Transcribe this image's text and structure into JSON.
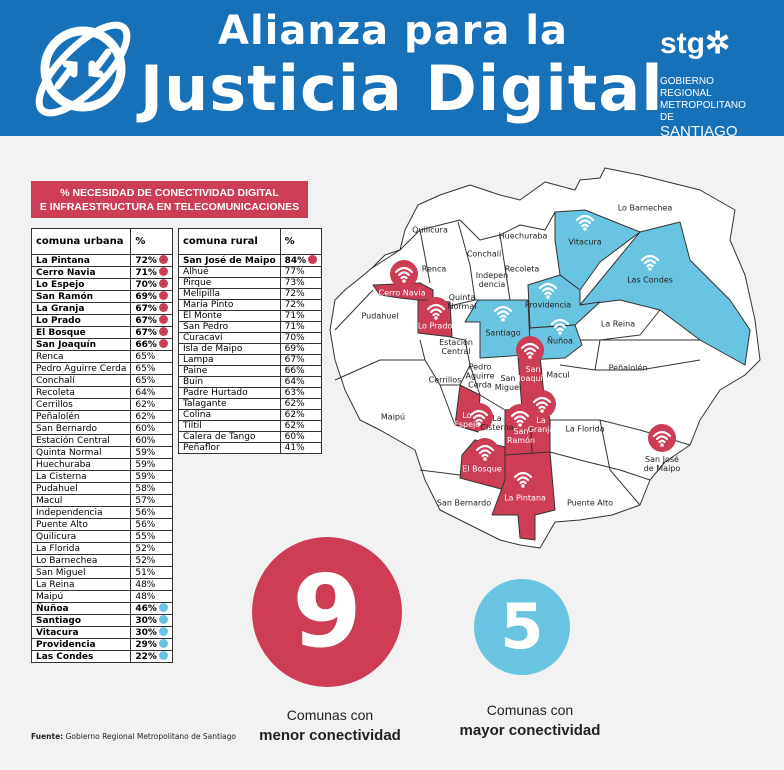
{
  "header": {
    "title_line1": "Alianza para la",
    "title_line2": "Justicia Digital",
    "logo_brand": "stg",
    "logo_line1": "GOBIERNO REGIONAL",
    "logo_line2": "METROPOLITANO DE",
    "logo_line3": "SANTIAGO",
    "color": "#1771b8"
  },
  "banner": {
    "line1": "% NECESIDAD DE CONECTIVIDAD DIGITAL",
    "line2": "E INFRAESTRUCTURA EN TELECOMUNICACIONES"
  },
  "colors": {
    "low_connectivity": "#cd3d55",
    "high_connectivity": "#69c4e1"
  },
  "urban_table": {
    "headers": [
      "comuna urbana",
      "%"
    ],
    "rows": [
      [
        "La Pintana",
        "72%",
        "red"
      ],
      [
        "Cerro Navia",
        "71%",
        "red"
      ],
      [
        "Lo Espejo",
        "70%",
        "red"
      ],
      [
        "San Ramón",
        "69%",
        "red"
      ],
      [
        "La Granja",
        "67%",
        "red"
      ],
      [
        "Lo Prado",
        "67%",
        "red"
      ],
      [
        "El Bosque",
        "67%",
        "red"
      ],
      [
        "San Joaquín",
        "66%",
        "red"
      ],
      [
        "Renca",
        "65%",
        ""
      ],
      [
        "Pedro Aguirre Cerda",
        "65%",
        ""
      ],
      [
        "Conchalí",
        "65%",
        ""
      ],
      [
        "Recoleta",
        "64%",
        ""
      ],
      [
        "Cerrillos",
        "62%",
        ""
      ],
      [
        "Peñalolén",
        "62%",
        ""
      ],
      [
        "San Bernardo",
        "60%",
        ""
      ],
      [
        "Estación Central",
        "60%",
        ""
      ],
      [
        "Quinta Normal",
        "59%",
        ""
      ],
      [
        "Huechuraba",
        "59%",
        ""
      ],
      [
        "La Cisterna",
        "59%",
        ""
      ],
      [
        "Pudahuel",
        "58%",
        ""
      ],
      [
        "Macul",
        "57%",
        ""
      ],
      [
        "Independencia",
        "56%",
        ""
      ],
      [
        "Puente Alto",
        "56%",
        ""
      ],
      [
        "Quilicura",
        "55%",
        ""
      ],
      [
        "La Florida",
        "52%",
        ""
      ],
      [
        "Lo Barnechea",
        "52%",
        ""
      ],
      [
        "San Miguel",
        "51%",
        ""
      ],
      [
        "La Reina",
        "48%",
        ""
      ],
      [
        "Maipú",
        "48%",
        ""
      ],
      [
        "Ñuñoa",
        "46%",
        "blue"
      ],
      [
        "Santiago",
        "30%",
        "blue"
      ],
      [
        "Vitacura",
        "30%",
        "blue"
      ],
      [
        "Providencia",
        "29%",
        "blue"
      ],
      [
        "Las Condes",
        "22%",
        "blue"
      ]
    ]
  },
  "rural_table": {
    "headers": [
      "comuna rural",
      "%"
    ],
    "rows": [
      [
        "San José de Maipo",
        "84%",
        "red"
      ],
      [
        "Alhué",
        "77%",
        ""
      ],
      [
        "Pirque",
        "73%",
        ""
      ],
      [
        "Melipilla",
        "72%",
        ""
      ],
      [
        "María Pinto",
        "72%",
        ""
      ],
      [
        "El Monte",
        "71%",
        ""
      ],
      [
        "San Pedro",
        "71%",
        ""
      ],
      [
        "Curacaví",
        "70%",
        ""
      ],
      [
        "Isla de Maipo",
        "69%",
        ""
      ],
      [
        "Lampa",
        "67%",
        ""
      ],
      [
        "Paine",
        "66%",
        ""
      ],
      [
        "Buin",
        "64%",
        ""
      ],
      [
        "Padre Hurtado",
        "63%",
        ""
      ],
      [
        "Talagante",
        "62%",
        ""
      ],
      [
        "Colina",
        "62%",
        ""
      ],
      [
        "Tiltil",
        "62%",
        ""
      ],
      [
        "Calera de Tango",
        "60%",
        ""
      ],
      [
        "Peñaflor",
        "41%",
        ""
      ]
    ]
  },
  "map": {
    "labels": {
      "lo_barnechea": "Lo Barnechea",
      "quilicura": "Quilicura",
      "huechuraba": "Huechuraba",
      "vitacura": "Vitacura",
      "conchali": "Conchalí",
      "renca": "Renca",
      "independencia": "Indepen\ndencia",
      "recoleta": "Recoleta",
      "las_condes": "Las Condes",
      "cerro_navia": "Cerro Navia",
      "quinta_normal": "Quinta\nNormal",
      "providencia": "Providencia",
      "pudahuel": "Pudahuel",
      "lo_prado": "Lo Prado",
      "santiago": "Santiago",
      "la_reina": "La Reina",
      "nunoa": "Ñuñoa",
      "estacion_central": "Estación\nCentral",
      "penalolen": "Peñalolén",
      "san_joaquin": "San\nJoaquín",
      "macul": "Macul",
      "cerrillos": "Cerrillos",
      "pac": "Pedro\nAguirre\nCerda",
      "san_miguel": "San\nMiguel",
      "maipu": "Maipú",
      "lo_espejo": "Lo\nEspejo",
      "la_cisterna": "La\nCisterna",
      "la_granja": "La\nGranja",
      "san_ramon": "San\nRamón",
      "la_florida": "La Florida",
      "san_jose": "San José\nde Maipo",
      "el_bosque": "El Bosque",
      "la_pintana": "La Pintana",
      "san_bernardo": "San Bernardo",
      "puente_alto": "Puente Alto"
    }
  },
  "summary": {
    "low_count": "9",
    "low_line1": "Comunas con",
    "low_line2": "menor conectividad",
    "high_count": "5",
    "high_line1": "Comunas con",
    "high_line2": "mayor conectividad"
  },
  "source": {
    "label": "Fuente:",
    "text": " Gobierno Regional Metropolitano de Santiago"
  }
}
